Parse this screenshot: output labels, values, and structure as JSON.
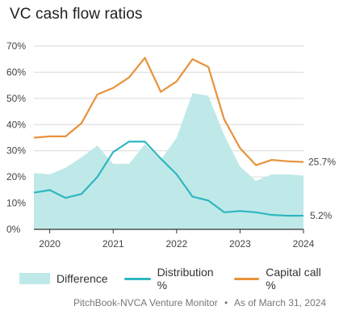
{
  "title": "VC cash flow ratios",
  "colors": {
    "difference": "#bfe9e8",
    "distribution": "#2fb7c1",
    "capital_call": "#e8923a",
    "grid": "#d9d9d9",
    "axis": "#333333"
  },
  "chart_data": {
    "type": "line",
    "title": "VC cash flow ratios",
    "x": [
      2019.75,
      2020.0,
      2020.25,
      2020.5,
      2020.75,
      2021.0,
      2021.25,
      2021.5,
      2021.75,
      2022.0,
      2022.25,
      2022.5,
      2022.75,
      2023.0,
      2023.25,
      2023.5,
      2023.75,
      2024.0
    ],
    "x_ticks": [
      2020,
      2021,
      2022,
      2023,
      2024
    ],
    "x_tick_labels": [
      "2020",
      "2021",
      "2022",
      "2023",
      "2024"
    ],
    "xlim": [
      2019.75,
      2024.0
    ],
    "ylim": [
      0,
      70
    ],
    "y_ticks": [
      0,
      10,
      20,
      30,
      40,
      50,
      60,
      70
    ],
    "y_tick_labels": [
      "0%",
      "10%",
      "20%",
      "30%",
      "40%",
      "50%",
      "60%",
      "70%"
    ],
    "grid": "horizontal",
    "legend_position": "bottom",
    "series": [
      {
        "name": "Difference",
        "kind": "area",
        "values": [
          21.5,
          21.0,
          23.5,
          27.5,
          32.0,
          25.0,
          25.0,
          32.5,
          26.5,
          35.0,
          52.0,
          51.0,
          36.0,
          24.0,
          18.5,
          21.0,
          21.0,
          20.5
        ]
      },
      {
        "name": "Distribution %",
        "kind": "line",
        "values": [
          14.0,
          15.0,
          12.0,
          13.5,
          20.0,
          29.5,
          33.5,
          33.5,
          27.0,
          21.0,
          12.5,
          11.0,
          6.5,
          7.0,
          6.5,
          5.5,
          5.2,
          5.2
        ]
      },
      {
        "name": "Capital call %",
        "kind": "line",
        "values": [
          35.0,
          35.5,
          35.5,
          40.5,
          51.5,
          54.0,
          58.0,
          65.5,
          52.5,
          56.5,
          65.0,
          62.0,
          42.0,
          31.0,
          24.5,
          26.5,
          26.0,
          25.7
        ]
      }
    ],
    "end_labels": {
      "capital_call": "25.7%",
      "distribution": "5.2%"
    }
  },
  "legend": {
    "difference": "Difference",
    "distribution": "Distribution %",
    "capital_call": "Capital call %"
  },
  "footer": {
    "source": "PitchBook-NVCA Venture Monitor",
    "separator": "•",
    "date": "As of March 31, 2024"
  }
}
